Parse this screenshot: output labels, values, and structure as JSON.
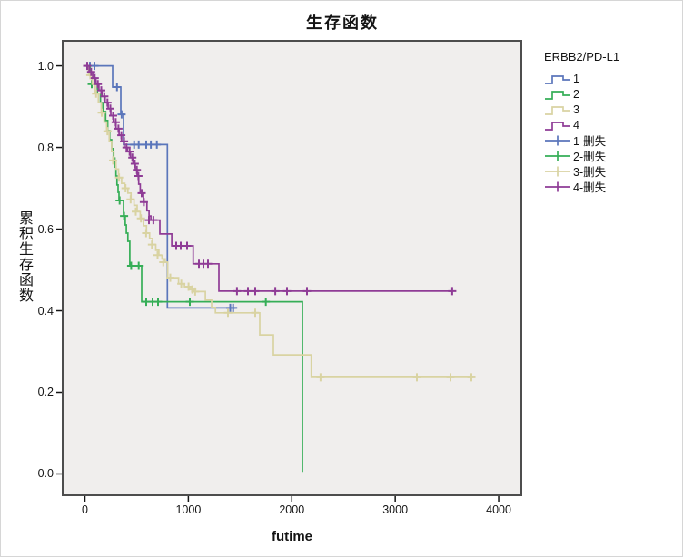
{
  "figure": {
    "title": "生存函数"
  },
  "axes": {
    "x_label": "futime",
    "y_label": "累积生存函数",
    "x_tick_labels": [
      "0",
      "1000",
      "2000",
      "3000",
      "4000"
    ],
    "y_tick_labels": [
      "0.0",
      "0.2",
      "0.4",
      "0.6",
      "0.8",
      "1.0"
    ]
  },
  "legend": {
    "title": "ERBB2/PD-L1",
    "items": [
      {
        "label": "1",
        "type": "step-line",
        "color": "#5B76BB"
      },
      {
        "label": "2",
        "type": "step-line",
        "color": "#36AE57"
      },
      {
        "label": "3",
        "type": "step-line",
        "color": "#D9D3A2"
      },
      {
        "label": "4",
        "type": "step-line",
        "color": "#8F3C96"
      },
      {
        "label": "1-删失",
        "type": "censor-mark",
        "color": "#5B76BB"
      },
      {
        "label": "2-删失",
        "type": "censor-mark",
        "color": "#36AE57"
      },
      {
        "label": "3-删失",
        "type": "censor-mark",
        "color": "#D9D3A2"
      },
      {
        "label": "4-删失",
        "type": "censor-mark",
        "color": "#8F3C96"
      }
    ]
  },
  "colors": {
    "plot_background": "#F0EEED",
    "frame": "#4D4D4D",
    "group1_blue": "#5B76BB",
    "group2_green": "#36AE57",
    "group3_tan": "#D9D3A2",
    "group4_purple": "#8F3C96"
  },
  "chart_data": {
    "type": "line",
    "subtype": "kaplan-meier-survival-step",
    "title": "生存函数",
    "xlabel": "futime",
    "ylabel": "累积生存函数",
    "x_ticks": [
      0,
      1000,
      2000,
      3000,
      4000
    ],
    "y_ticks": [
      0.0,
      0.2,
      0.4,
      0.6,
      0.8,
      1.0
    ],
    "xlim": [
      -224,
      4228
    ],
    "ylim": [
      -0.0545,
      1.0635
    ],
    "grid": false,
    "legend_position": "right",
    "series": [
      {
        "name": "1",
        "censored_name": "1-删失",
        "color": "#5B76BB",
        "steps": [
          [
            0,
            1.0
          ],
          [
            268,
            0.948
          ],
          [
            347,
            0.881
          ],
          [
            373,
            0.807
          ],
          [
            797,
            0.407
          ],
          [
            1456,
            0.407
          ]
        ],
        "censors": [
          [
            48,
            1.0
          ],
          [
            92,
            1.0
          ],
          [
            310,
            0.948
          ],
          [
            355,
            0.881
          ],
          [
            476,
            0.807
          ],
          [
            520,
            0.807
          ],
          [
            593,
            0.807
          ],
          [
            637,
            0.807
          ],
          [
            695,
            0.807
          ],
          [
            1405,
            0.407
          ],
          [
            1433,
            0.407
          ]
        ]
      },
      {
        "name": "2",
        "censored_name": "2-删失",
        "color": "#36AE57",
        "steps": [
          [
            0,
            1.0
          ],
          [
            48,
            0.977
          ],
          [
            90,
            0.955
          ],
          [
            120,
            0.932
          ],
          [
            150,
            0.91
          ],
          [
            175,
            0.888
          ],
          [
            200,
            0.866
          ],
          [
            220,
            0.841
          ],
          [
            240,
            0.819
          ],
          [
            258,
            0.797
          ],
          [
            275,
            0.774
          ],
          [
            290,
            0.752
          ],
          [
            300,
            0.73
          ],
          [
            310,
            0.708
          ],
          [
            320,
            0.69
          ],
          [
            329,
            0.67
          ],
          [
            373,
            0.632
          ],
          [
            390,
            0.61
          ],
          [
            400,
            0.59
          ],
          [
            415,
            0.57
          ],
          [
            434,
            0.51
          ],
          [
            549,
            0.422
          ],
          [
            2103,
            0.005
          ]
        ],
        "censors": [
          [
            66,
            0.955
          ],
          [
            335,
            0.67
          ],
          [
            378,
            0.632
          ],
          [
            447,
            0.51
          ],
          [
            520,
            0.51
          ],
          [
            593,
            0.422
          ],
          [
            654,
            0.422
          ],
          [
            707,
            0.422
          ],
          [
            1014,
            0.422
          ],
          [
            1749,
            0.422
          ]
        ]
      },
      {
        "name": "3",
        "censored_name": "3-删失",
        "color": "#D9D3A2",
        "steps": [
          [
            0,
            1.0
          ],
          [
            35,
            0.977
          ],
          [
            70,
            0.955
          ],
          [
            100,
            0.932
          ],
          [
            130,
            0.91
          ],
          [
            158,
            0.885
          ],
          [
            185,
            0.862
          ],
          [
            210,
            0.84
          ],
          [
            235,
            0.815
          ],
          [
            258,
            0.79
          ],
          [
            280,
            0.768
          ],
          [
            300,
            0.747
          ],
          [
            325,
            0.726
          ],
          [
            355,
            0.712
          ],
          [
            385,
            0.7
          ],
          [
            415,
            0.688
          ],
          [
            445,
            0.673
          ],
          [
            475,
            0.658
          ],
          [
            505,
            0.643
          ],
          [
            535,
            0.626
          ],
          [
            565,
            0.608
          ],
          [
            595,
            0.59
          ],
          [
            625,
            0.577
          ],
          [
            655,
            0.562
          ],
          [
            685,
            0.548
          ],
          [
            715,
            0.536
          ],
          [
            745,
            0.527
          ],
          [
            775,
            0.519
          ],
          [
            800,
            0.481
          ],
          [
            905,
            0.466
          ],
          [
            962,
            0.459
          ],
          [
            1010,
            0.452
          ],
          [
            1052,
            0.447
          ],
          [
            1164,
            0.426
          ],
          [
            1225,
            0.408
          ],
          [
            1262,
            0.395
          ],
          [
            1690,
            0.341
          ],
          [
            1822,
            0.292
          ],
          [
            2188,
            0.237
          ],
          [
            3753,
            0.237
          ]
        ],
        "censors": [
          [
            52,
            0.977
          ],
          [
            108,
            0.932
          ],
          [
            162,
            0.885
          ],
          [
            218,
            0.84
          ],
          [
            272,
            0.768
          ],
          [
            330,
            0.726
          ],
          [
            392,
            0.7
          ],
          [
            442,
            0.673
          ],
          [
            492,
            0.643
          ],
          [
            542,
            0.626
          ],
          [
            592,
            0.59
          ],
          [
            648,
            0.562
          ],
          [
            702,
            0.536
          ],
          [
            758,
            0.519
          ],
          [
            825,
            0.481
          ],
          [
            932,
            0.466
          ],
          [
            1002,
            0.459
          ],
          [
            1038,
            0.452
          ],
          [
            1066,
            0.447
          ],
          [
            1383,
            0.395
          ],
          [
            1646,
            0.395
          ],
          [
            2278,
            0.237
          ],
          [
            3209,
            0.237
          ],
          [
            3534,
            0.237
          ],
          [
            3736,
            0.237
          ]
        ]
      },
      {
        "name": "4",
        "censored_name": "4-删失",
        "color": "#8F3C96",
        "steps": [
          [
            0,
            1.0
          ],
          [
            40,
            0.985
          ],
          [
            75,
            0.97
          ],
          [
            105,
            0.955
          ],
          [
            135,
            0.94
          ],
          [
            165,
            0.925
          ],
          [
            195,
            0.91
          ],
          [
            225,
            0.895
          ],
          [
            250,
            0.878
          ],
          [
            275,
            0.862
          ],
          [
            300,
            0.846
          ],
          [
            330,
            0.83
          ],
          [
            355,
            0.815
          ],
          [
            380,
            0.8
          ],
          [
            410,
            0.79
          ],
          [
            440,
            0.775
          ],
          [
            465,
            0.76
          ],
          [
            487,
            0.745
          ],
          [
            505,
            0.73
          ],
          [
            520,
            0.71
          ],
          [
            535,
            0.688
          ],
          [
            566,
            0.666
          ],
          [
            600,
            0.645
          ],
          [
            620,
            0.632
          ],
          [
            637,
            0.622
          ],
          [
            724,
            0.588
          ],
          [
            839,
            0.559
          ],
          [
            1047,
            0.515
          ],
          [
            1295,
            0.448
          ],
          [
            3560,
            0.448
          ]
        ],
        "censors": [
          [
            22,
            1.0
          ],
          [
            60,
            0.985
          ],
          [
            95,
            0.97
          ],
          [
            125,
            0.955
          ],
          [
            158,
            0.94
          ],
          [
            188,
            0.925
          ],
          [
            218,
            0.91
          ],
          [
            246,
            0.895
          ],
          [
            272,
            0.878
          ],
          [
            298,
            0.862
          ],
          [
            324,
            0.846
          ],
          [
            352,
            0.83
          ],
          [
            378,
            0.815
          ],
          [
            402,
            0.8
          ],
          [
            432,
            0.79
          ],
          [
            458,
            0.775
          ],
          [
            482,
            0.76
          ],
          [
            502,
            0.745
          ],
          [
            517,
            0.73
          ],
          [
            549,
            0.688
          ],
          [
            570,
            0.666
          ],
          [
            619,
            0.622
          ],
          [
            662,
            0.622
          ],
          [
            882,
            0.559
          ],
          [
            926,
            0.559
          ],
          [
            988,
            0.559
          ],
          [
            1102,
            0.515
          ],
          [
            1146,
            0.515
          ],
          [
            1190,
            0.515
          ],
          [
            1470,
            0.448
          ],
          [
            1576,
            0.448
          ],
          [
            1646,
            0.448
          ],
          [
            1840,
            0.448
          ],
          [
            1954,
            0.448
          ],
          [
            2147,
            0.448
          ],
          [
            3551,
            0.448
          ]
        ]
      }
    ]
  }
}
